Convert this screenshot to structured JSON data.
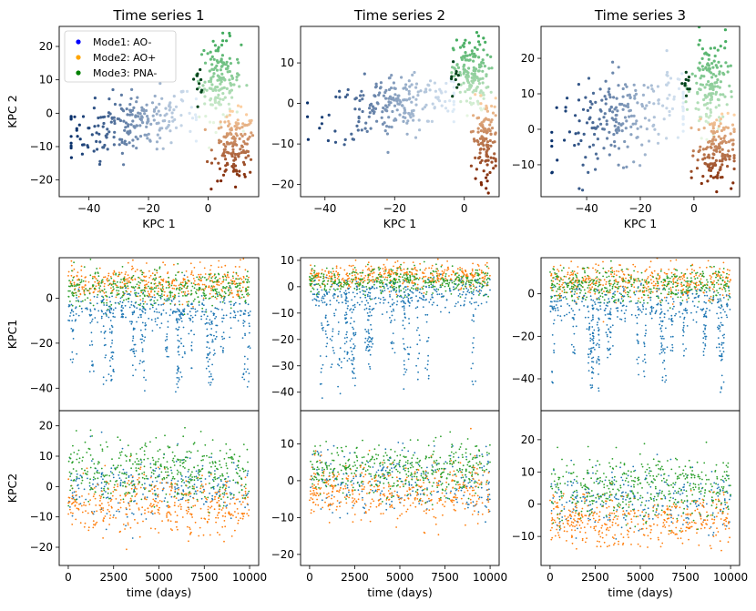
{
  "colors": {
    "mode1": "#1f77b4",
    "mode2": "#ff7f0e",
    "mode3": "#2ca02c",
    "legend_mode1": "#0000ff",
    "legend_mode2": "#ffa500",
    "legend_mode3": "#008000"
  },
  "legend": [
    {
      "label": "Mode1: AO-"
    },
    {
      "label": "Mode2: AO+"
    },
    {
      "label": "Mode3: PNA-"
    }
  ],
  "chart_data": [
    {
      "type": "scatter",
      "title": "Time series 1",
      "xlabel": "KPC 1",
      "ylabel": "KPC 2",
      "xlim": [
        -50,
        17
      ],
      "ylim": [
        -25,
        26
      ],
      "xticks": [
        -40,
        -20,
        0
      ],
      "yticks": [
        -20,
        -10,
        0,
        10,
        20
      ],
      "clusters": [
        {
          "mode": "Mode1: AO-",
          "center": [
            -25,
            -3
          ],
          "spread": [
            11,
            4.5
          ],
          "n": 220,
          "xrange": [
            -46,
            -4
          ]
        },
        {
          "mode": "Mode3: PNA-",
          "center": [
            4,
            10
          ],
          "spread": [
            3.5,
            6
          ],
          "n": 150,
          "xrange": [
            -4,
            13
          ]
        },
        {
          "mode": "Mode2: AO+",
          "center": [
            9,
            -10
          ],
          "spread": [
            3.5,
            5
          ],
          "n": 150,
          "xrange": [
            -2,
            15
          ]
        }
      ]
    },
    {
      "type": "scatter",
      "title": "Time series 2",
      "xlabel": "KPC 1",
      "ylabel": "",
      "xlim": [
        -47,
        10
      ],
      "ylim": [
        -23,
        19
      ],
      "xticks": [
        -40,
        -20,
        0
      ],
      "yticks": [
        -20,
        -10,
        0,
        10
      ],
      "clusters": [
        {
          "mode": "Mode1: AO-",
          "center": [
            -20,
            -1
          ],
          "spread": [
            10,
            4
          ],
          "n": 220,
          "xrange": [
            -45,
            -3
          ]
        },
        {
          "mode": "Mode3: PNA-",
          "center": [
            2,
            7
          ],
          "spread": [
            2.5,
            4.5
          ],
          "n": 150,
          "xrange": [
            -4,
            9
          ]
        },
        {
          "mode": "Mode2: AO+",
          "center": [
            6,
            -9
          ],
          "spread": [
            1.8,
            5
          ],
          "n": 120,
          "xrange": [
            2,
            9
          ]
        }
      ]
    },
    {
      "type": "scatter",
      "title": "Time series 3",
      "xlabel": "KPC 1",
      "ylabel": "",
      "xlim": [
        -57,
        17
      ],
      "ylim": [
        -19,
        29
      ],
      "xticks": [
        -40,
        -20,
        0
      ],
      "yticks": [
        -10,
        0,
        10,
        20
      ],
      "clusters": [
        {
          "mode": "Mode1: AO-",
          "center": [
            -25,
            3
          ],
          "spread": [
            13,
            6
          ],
          "n": 230,
          "xrange": [
            -53,
            -4
          ]
        },
        {
          "mode": "Mode3: PNA-",
          "center": [
            6,
            12
          ],
          "spread": [
            3.5,
            7
          ],
          "n": 150,
          "xrange": [
            -3,
            14
          ]
        },
        {
          "mode": "Mode2: AO+",
          "center": [
            8,
            -6
          ],
          "spread": [
            3.5,
            5
          ],
          "n": 150,
          "xrange": [
            -1,
            15
          ]
        }
      ]
    },
    {
      "type": "scatter",
      "title": "",
      "xlabel": "",
      "ylabel": "KPC1",
      "xlim": [
        -500,
        10500
      ],
      "ylim": [
        -50,
        18
      ],
      "xticks": [],
      "yticks": [
        -40,
        -20,
        0
      ],
      "series": [
        {
          "name": "Mode2: AO+",
          "baseline": 7,
          "spread": 4,
          "n": 420
        },
        {
          "name": "Mode3: PNA-",
          "baseline": 4,
          "spread": 4,
          "n": 420
        },
        {
          "name": "Mode1: AO-",
          "baseline": -5,
          "spread": 4,
          "n": 260,
          "drop_min": -45,
          "drop_events": 22
        }
      ]
    },
    {
      "type": "scatter",
      "title": "",
      "xlabel": "",
      "ylabel": "",
      "xlim": [
        -500,
        10500
      ],
      "ylim": [
        -47,
        11
      ],
      "xticks": [],
      "yticks": [
        -40,
        -30,
        -20,
        -10,
        0,
        10
      ],
      "series": [
        {
          "name": "Mode2: AO+",
          "baseline": 4,
          "spread": 2.5,
          "n": 420
        },
        {
          "name": "Mode3: PNA-",
          "baseline": 2,
          "spread": 2.5,
          "n": 420
        },
        {
          "name": "Mode1: AO-",
          "baseline": -3,
          "spread": 3,
          "n": 260,
          "drop_min": -43,
          "drop_events": 20
        }
      ]
    },
    {
      "type": "scatter",
      "title": "",
      "xlabel": "",
      "ylabel": "",
      "xlim": [
        -500,
        10500
      ],
      "ylim": [
        -55,
        17
      ],
      "xticks": [],
      "yticks": [
        -40,
        -20,
        0
      ],
      "series": [
        {
          "name": "Mode2: AO+",
          "baseline": 6,
          "spread": 4,
          "n": 420
        },
        {
          "name": "Mode3: PNA-",
          "baseline": 4,
          "spread": 4,
          "n": 420
        },
        {
          "name": "Mode1: AO-",
          "baseline": -5,
          "spread": 4,
          "n": 260,
          "drop_min": -50,
          "drop_events": 22
        }
      ]
    },
    {
      "type": "scatter",
      "title": "",
      "xlabel": "time (days)",
      "ylabel": "KPC2",
      "xlim": [
        -500,
        10500
      ],
      "ylim": [
        -26,
        25
      ],
      "xticks": [
        0,
        2500,
        5000,
        7500,
        10000
      ],
      "yticks": [
        -20,
        -10,
        0,
        10,
        20
      ],
      "series": [
        {
          "name": "Mode1: AO-",
          "baseline": 0,
          "spread": 5,
          "n": 260
        },
        {
          "name": "Mode2: AO+",
          "baseline": -6,
          "spread": 5,
          "n": 420
        },
        {
          "name": "Mode3: PNA-",
          "baseline": 5,
          "spread": 5,
          "n": 420
        }
      ]
    },
    {
      "type": "scatter",
      "title": "",
      "xlabel": "time (days)",
      "ylabel": "",
      "xlim": [
        -500,
        10500
      ],
      "ylim": [
        -23,
        19
      ],
      "xticks": [
        0,
        2500,
        5000,
        7500,
        10000
      ],
      "yticks": [
        -20,
        -10,
        0,
        10
      ],
      "series": [
        {
          "name": "Mode1: AO-",
          "baseline": 0,
          "spread": 4,
          "n": 260
        },
        {
          "name": "Mode2: AO+",
          "baseline": -3,
          "spread": 4,
          "n": 420
        },
        {
          "name": "Mode3: PNA-",
          "baseline": 3,
          "spread": 3.5,
          "n": 420
        }
      ]
    },
    {
      "type": "scatter",
      "title": "",
      "xlabel": "time (days)",
      "ylabel": "",
      "xlim": [
        -500,
        10500
      ],
      "ylim": [
        -19,
        29
      ],
      "xticks": [
        0,
        2500,
        5000,
        7500,
        10000
      ],
      "yticks": [
        -10,
        0,
        10,
        20
      ],
      "series": [
        {
          "name": "Mode1: AO-",
          "baseline": 2,
          "spread": 5,
          "n": 260
        },
        {
          "name": "Mode2: AO+",
          "baseline": -5,
          "spread": 4,
          "n": 420
        },
        {
          "name": "Mode3: PNA-",
          "baseline": 5,
          "spread": 5,
          "n": 420
        }
      ]
    }
  ]
}
